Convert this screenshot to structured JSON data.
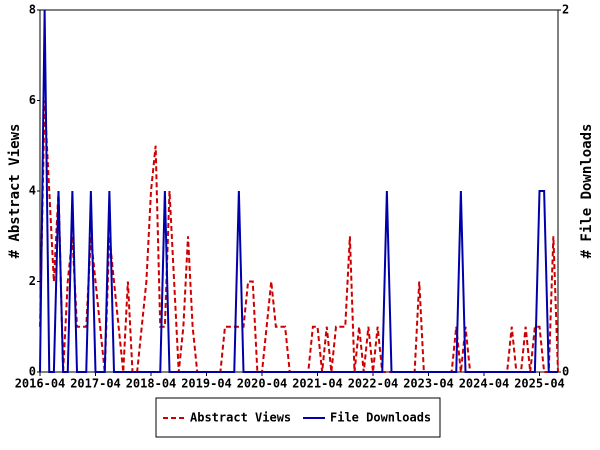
{
  "chart_data": {
    "type": "line",
    "categories": [
      "2016-04",
      null,
      null,
      null,
      null,
      null,
      null,
      null,
      null,
      null,
      null,
      null,
      "2017-04",
      null,
      null,
      null,
      null,
      null,
      null,
      null,
      null,
      null,
      null,
      null,
      "2018-04",
      null,
      null,
      null,
      null,
      null,
      null,
      null,
      null,
      null,
      null,
      null,
      "2019-04",
      null,
      null,
      null,
      null,
      null,
      null,
      null,
      null,
      null,
      null,
      null,
      "2020-04",
      null,
      null,
      null,
      null,
      null,
      null,
      null,
      null,
      null,
      null,
      null,
      "2021-04",
      null,
      null,
      null,
      null,
      null,
      null,
      null,
      null,
      null,
      null,
      null,
      "2022-04",
      null,
      null,
      null,
      null,
      null,
      null,
      null,
      null,
      null,
      null,
      null,
      "2023-04",
      null,
      null,
      null,
      null,
      null,
      null,
      null,
      null,
      null,
      null,
      null,
      "2024-04",
      null,
      null,
      null,
      null,
      null,
      null,
      null,
      null,
      null,
      null,
      null,
      "2025-04",
      null,
      null,
      null,
      null
    ],
    "ylabel": "# Abstract Views",
    "y2label": "# File Downloads",
    "ylim": [
      0,
      8
    ],
    "yticks": [
      0,
      2,
      4,
      6,
      8
    ],
    "y2lim": [
      0,
      2
    ],
    "y2ticks": [
      0,
      2
    ],
    "grid": false,
    "legend": "bottom",
    "series": [
      {
        "name": "Abstract Views",
        "color": "#cc0000",
        "dashed": true,
        "values": [
          1,
          6,
          4,
          2,
          4,
          0,
          2,
          3,
          1,
          1,
          1,
          3,
          2,
          1,
          0,
          3,
          2,
          1,
          0,
          2,
          0,
          0,
          1,
          2,
          4,
          5,
          1,
          1,
          4,
          2,
          0,
          1,
          3,
          1,
          0,
          0,
          0,
          0,
          0,
          0,
          1,
          1,
          1,
          1,
          1,
          2,
          2,
          0,
          0,
          1,
          2,
          1,
          1,
          1,
          0,
          0,
          0,
          0,
          0,
          1,
          1,
          0,
          1,
          0,
          1,
          1,
          1,
          3,
          0,
          1,
          0,
          1,
          0,
          1,
          0,
          0,
          0,
          0,
          0,
          0,
          0,
          0,
          2,
          0,
          0,
          0,
          0,
          0,
          0,
          0,
          1,
          0,
          1,
          0,
          0,
          0,
          0,
          0,
          0,
          0,
          0,
          0,
          1,
          0,
          0,
          1,
          0,
          1,
          1,
          0,
          0,
          3,
          0
        ]
      },
      {
        "name": "File Downloads",
        "color": "#0000aa",
        "dashed": false,
        "axis": "y2",
        "values": [
          0,
          2,
          0,
          0,
          1,
          0,
          0,
          1,
          0,
          0,
          0,
          1,
          0,
          0,
          0,
          1,
          0,
          0,
          0,
          0,
          0,
          0,
          0,
          0,
          0,
          0,
          0,
          1,
          0,
          0,
          0,
          0,
          0,
          0,
          0,
          0,
          0,
          0,
          0,
          0,
          0,
          0,
          0,
          1,
          0,
          0,
          0,
          0,
          0,
          0,
          0,
          0,
          0,
          0,
          0,
          0,
          0,
          0,
          0,
          0,
          0,
          0,
          0,
          0,
          0,
          0,
          0,
          0,
          0,
          0,
          0,
          0,
          0,
          0,
          0,
          1,
          0,
          0,
          0,
          0,
          0,
          0,
          0,
          0,
          0,
          0,
          0,
          0,
          0,
          0,
          0,
          1,
          0,
          0,
          0,
          0,
          0,
          0,
          0,
          0,
          0,
          0,
          0,
          0,
          0,
          0,
          0,
          0,
          1,
          1,
          0,
          0,
          0
        ]
      }
    ]
  }
}
